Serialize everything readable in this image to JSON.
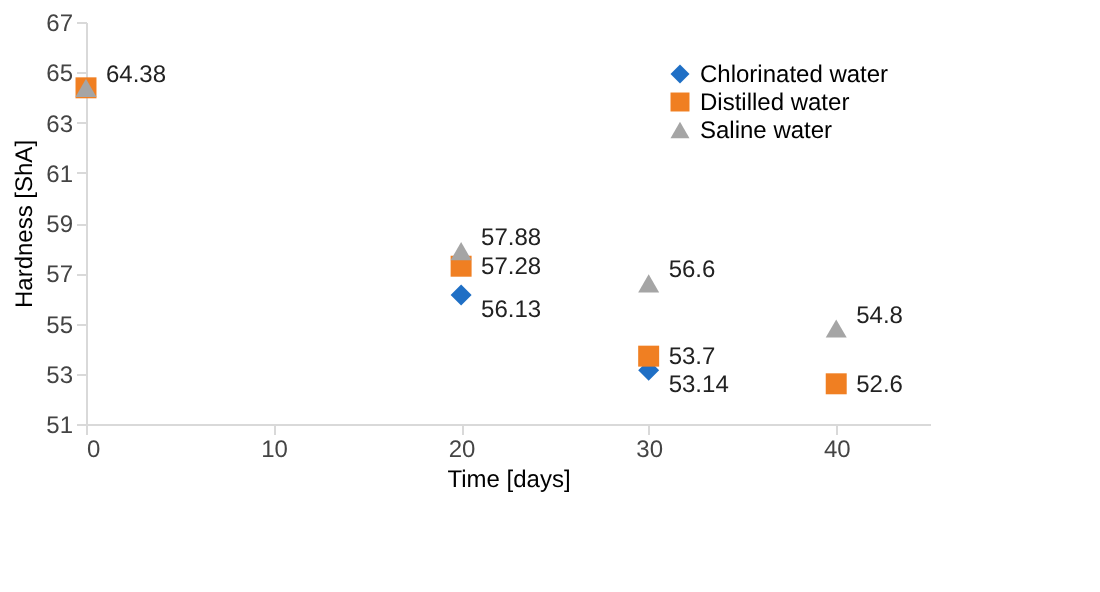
{
  "chart_data": {
    "type": "scatter",
    "xlabel": "Time [days]",
    "ylabel": "Hardness [ShA]",
    "x": [
      0,
      20,
      30,
      40
    ],
    "series": [
      {
        "name": "Chlorinated water",
        "color": "#1f6fc5",
        "marker": "diamond",
        "values": [
          null,
          56.13,
          53.14,
          null
        ],
        "value_labels": [
          null,
          "56.13",
          "53.14",
          null
        ]
      },
      {
        "name": "Distilled water",
        "color": "#f07f22",
        "marker": "square",
        "values": [
          64.38,
          57.28,
          53.7,
          52.6
        ],
        "value_labels": [
          null,
          "57.28",
          "53.7",
          "52.6"
        ]
      },
      {
        "name": "Saline water",
        "color": "#a5a5a5",
        "marker": "triangle",
        "values": [
          64.38,
          57.88,
          56.6,
          54.8
        ],
        "value_labels": [
          "64.38",
          "57.88",
          "56.6",
          "54.8"
        ]
      }
    ],
    "xlim": [
      0,
      45
    ],
    "xticks": [
      0,
      10,
      20,
      30,
      40
    ],
    "ylim": [
      51,
      67
    ],
    "yticks": [
      51,
      53,
      55,
      57,
      59,
      61,
      63,
      65,
      67
    ],
    "grid": false,
    "legend": "top right"
  }
}
